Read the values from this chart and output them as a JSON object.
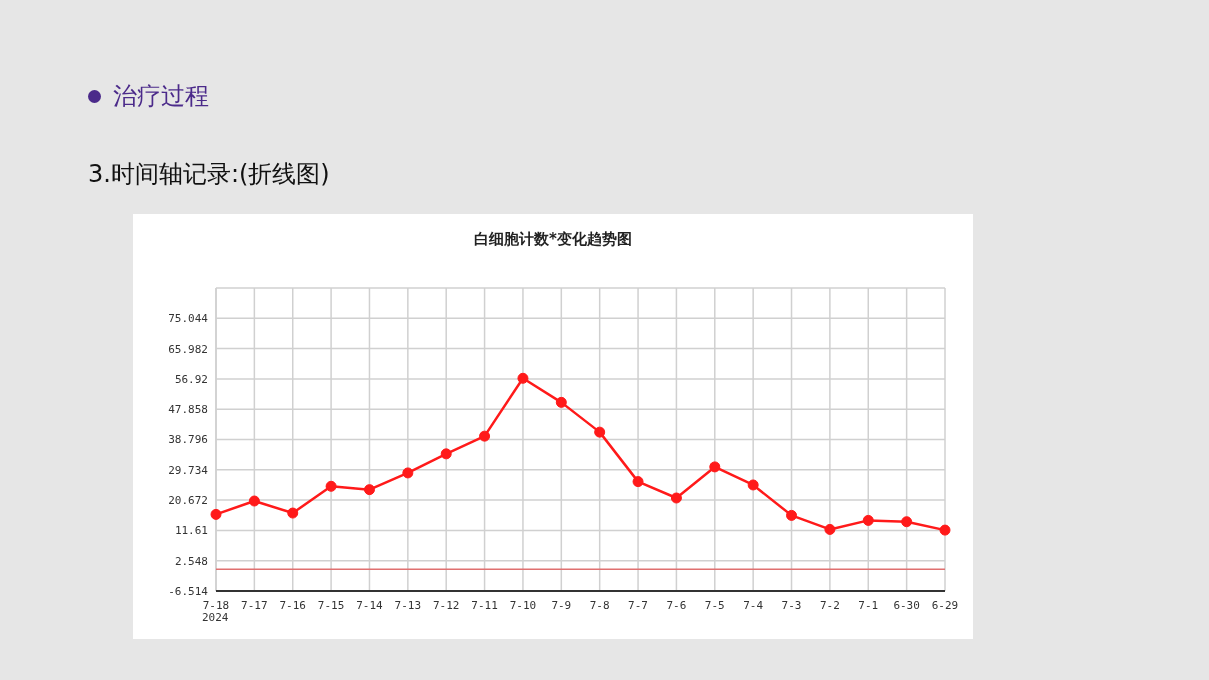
{
  "chart_data": {
    "type": "line",
    "title": "白细胞计数*变化趋势图",
    "annotations": [
      "治疗过程",
      "3.时间轴记录:(折线图)"
    ],
    "categories": [
      "7-18\n2024",
      "7-17",
      "7-16",
      "7-15",
      "7-14",
      "7-13",
      "7-12",
      "7-11",
      "7-10",
      "7-9",
      "7-8",
      "7-7",
      "7-6",
      "7-5",
      "7-4",
      "7-3",
      "7-2",
      "7-1",
      "6-30",
      "6-29"
    ],
    "series": [
      {
        "color": "#ff1a1a",
        "values": [
          16.4,
          20.4,
          16.8,
          24.8,
          23.8,
          28.8,
          34.5,
          39.8,
          57.1,
          49.9,
          41.0,
          26.2,
          21.3,
          30.6,
          25.2,
          16.1,
          11.9,
          14.6,
          14.2,
          11.7
        ]
      }
    ],
    "ylim": [
      -6.514,
      84.106
    ],
    "yticks": [
      -6.514,
      2.548,
      11.61,
      20.672,
      29.734,
      38.796,
      47.858,
      56.92,
      65.982,
      75.044
    ],
    "ref_lines": [
      {
        "axis": "y",
        "value": 0,
        "color": "#e07070"
      }
    ],
    "grid": true,
    "marker": "circle",
    "line_style": "solid",
    "legend": false
  }
}
